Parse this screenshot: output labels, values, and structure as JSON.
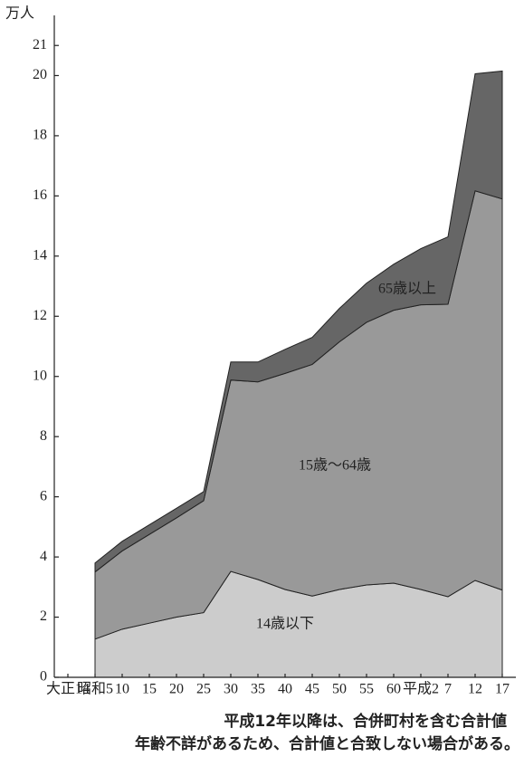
{
  "chart_data": {
    "type": "stacked_area",
    "y_unit": "万人",
    "categories": [
      "大正14",
      "昭和5",
      "10",
      "15",
      "20",
      "25",
      "30",
      "35",
      "40",
      "45",
      "50",
      "55",
      "60",
      "平成2",
      "7",
      "12",
      "17"
    ],
    "series": [
      {
        "name": "14歳以下",
        "color": "#cccccc",
        "values": [
          null,
          1.27,
          1.6,
          1.8,
          2.0,
          2.15,
          3.52,
          3.25,
          2.92,
          2.7,
          2.92,
          3.07,
          3.13,
          2.92,
          2.68,
          3.22,
          2.9
        ]
      },
      {
        "name": "15歳～64歳",
        "color": "#999999",
        "values": [
          null,
          2.23,
          2.6,
          2.95,
          3.3,
          3.72,
          6.36,
          6.57,
          7.18,
          7.7,
          8.23,
          8.73,
          9.07,
          9.46,
          9.72,
          12.95,
          13.0
        ]
      },
      {
        "name": "65歳以上",
        "color": "#666666",
        "values": [
          null,
          0.3,
          0.32,
          0.32,
          0.32,
          0.3,
          0.6,
          0.66,
          0.8,
          0.9,
          1.11,
          1.3,
          1.53,
          1.87,
          2.24,
          3.89,
          4.25
        ]
      }
    ],
    "ylim": [
      0,
      22
    ],
    "yticks": [
      0,
      2,
      4,
      6,
      8,
      10,
      12,
      14,
      16,
      18,
      20,
      21
    ],
    "notes": [
      "平成12年以降は、合併町村を含む合計値",
      "年齢不詳があるため、合計値と合致しない場合がある。"
    ]
  }
}
